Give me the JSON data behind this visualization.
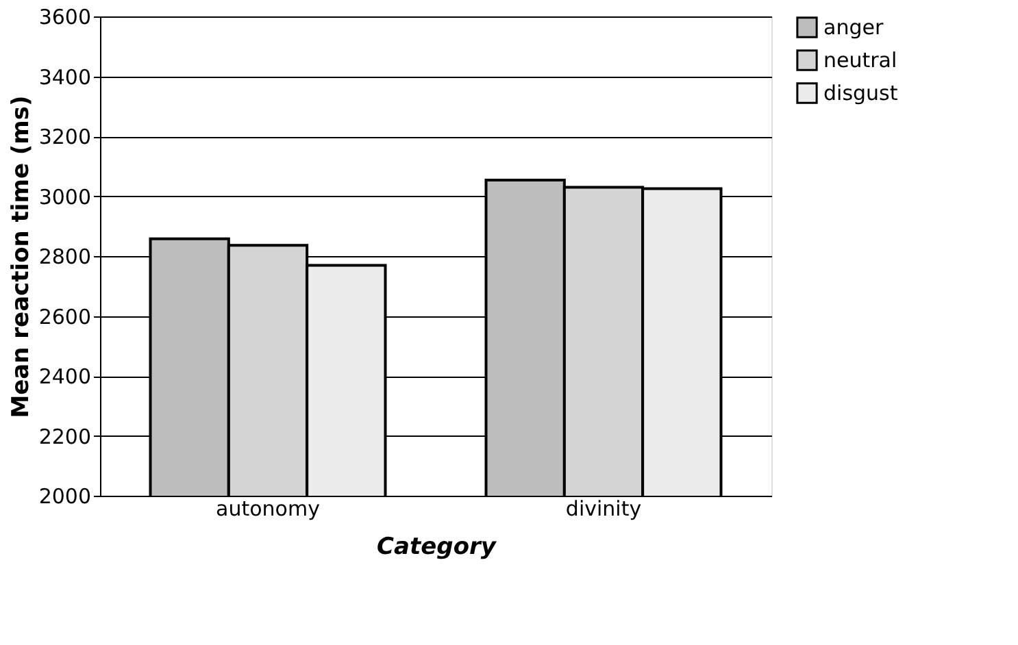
{
  "chart_data": {
    "type": "bar",
    "xlabel": "Category",
    "ylabel": "Mean reaction time (ms)",
    "categories": [
      "autonomy",
      "divinity"
    ],
    "series": [
      {
        "name": "anger",
        "color": "#bdbdbd",
        "values": [
          2858,
          3054
        ]
      },
      {
        "name": "neutral",
        "color": "#d4d4d4",
        "values": [
          2836,
          3030
        ]
      },
      {
        "name": "disgust",
        "color": "#ececec",
        "values": [
          2769,
          3025
        ]
      }
    ],
    "ylim": [
      2000,
      3600
    ],
    "yticks": [
      2000,
      2200,
      2400,
      2600,
      2800,
      3000,
      3200,
      3400,
      3600
    ],
    "grid": "y",
    "legend": "right"
  }
}
